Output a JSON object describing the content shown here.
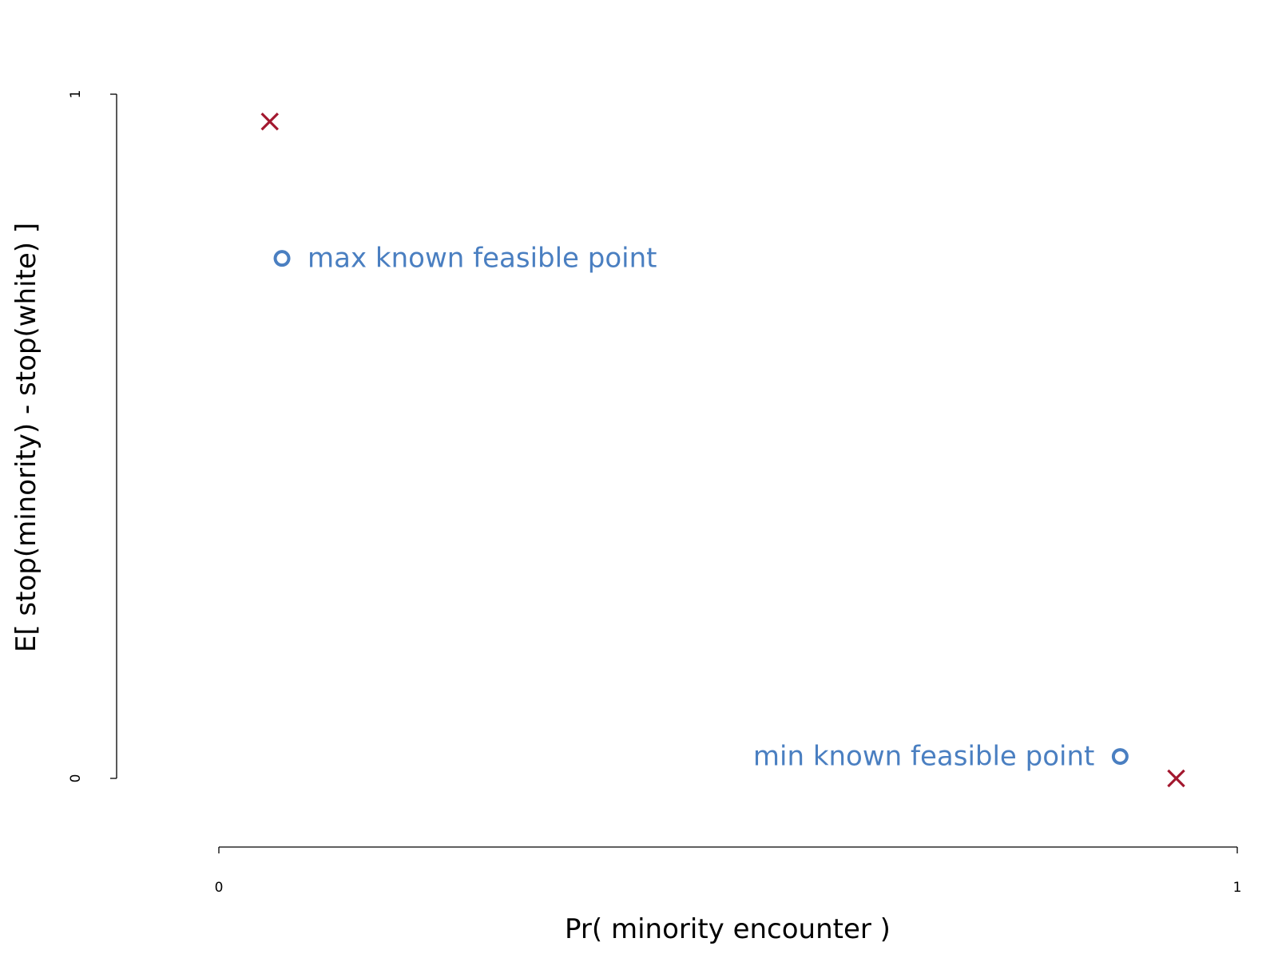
{
  "chart_data": {
    "type": "scatter",
    "xlabel": "Pr( minority encounter )",
    "ylabel": "E[ stop(minority) - stop(white) ]",
    "xlim": [
      0,
      1
    ],
    "ylim": [
      0,
      1
    ],
    "x_ticks": [
      "0",
      "1"
    ],
    "y_ticks": [
      "0",
      "1"
    ],
    "grid": false,
    "colors": {
      "cross": "#a3182f",
      "feasible": "#4a7fc1"
    },
    "series": [
      {
        "marker": "x",
        "points": [
          {
            "x": 0.05,
            "y": 0.96
          },
          {
            "x": 0.94,
            "y": 0.0
          }
        ]
      },
      {
        "marker": "open-circle",
        "points": [
          {
            "x": 0.062,
            "y": 0.76,
            "label": "max known feasible point"
          },
          {
            "x": 0.885,
            "y": 0.032,
            "label": "min known feasible point"
          }
        ]
      }
    ]
  }
}
